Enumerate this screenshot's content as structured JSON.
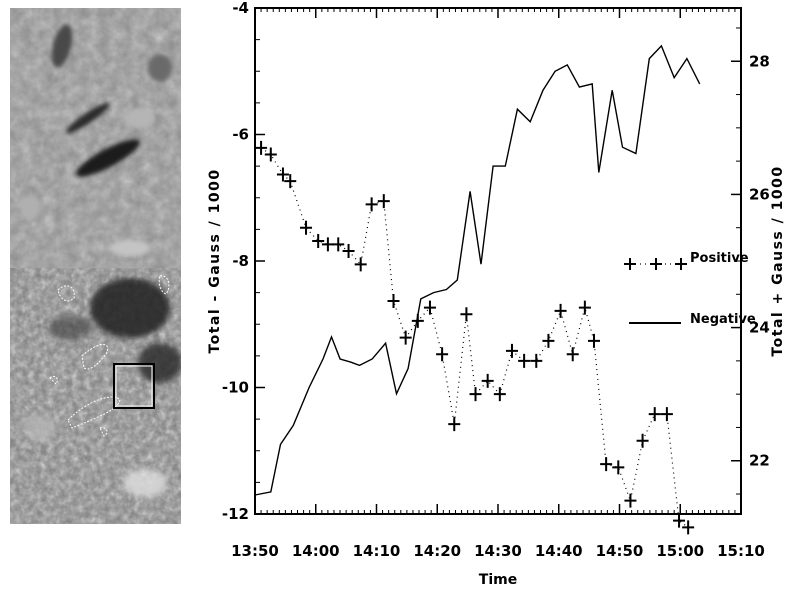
{
  "chart_data": {
    "type": "line",
    "x_axis": {
      "label": "Time",
      "ticks": [
        "13:50",
        "14:00",
        "14:10",
        "14:20",
        "14:30",
        "14:40",
        "14:50",
        "15:00",
        "15:10"
      ],
      "range_minutes_after_13_50": [
        0,
        80
      ]
    },
    "y_left": {
      "label": "Total - Gauss / 1000",
      "ticks": [
        "-4",
        "-6",
        "-8",
        "-10",
        "-12"
      ],
      "range": [
        -12,
        -4
      ]
    },
    "y_right": {
      "label": "Total + Gauss / 1000",
      "ticks": [
        "22",
        "24",
        "26",
        "28"
      ],
      "range": [
        21.2,
        28.8
      ]
    },
    "legend_position": "right",
    "series": [
      {
        "name": "Negative",
        "axis": "left",
        "style": "solid line",
        "times": [
          "13:50",
          "13:53",
          "13:55",
          "13:57",
          "14:00",
          "14:02",
          "14:04",
          "14:05",
          "14:07",
          "14:09",
          "14:10",
          "14:12",
          "14:13",
          "14:15",
          "14:17",
          "14:19",
          "14:21",
          "14:23",
          "14:25",
          "14:27",
          "14:29",
          "14:31",
          "14:33",
          "14:35",
          "14:37",
          "14:39",
          "14:41",
          "14:43",
          "14:45",
          "14:46",
          "14:48",
          "14:49",
          "14:51",
          "14:53",
          "14:55",
          "14:57",
          "14:59",
          "15:01"
        ],
        "x": [
          0,
          2.6,
          4.2,
          6.3,
          8.9,
          11.2,
          12.6,
          14.0,
          15.8,
          17.2,
          19.3,
          21.5,
          23.3,
          25.2,
          27.3,
          29.4,
          31.5,
          33.3,
          35.4,
          37.2,
          39.2,
          41.2,
          43.2,
          45.3,
          47.4,
          49.4,
          51.4,
          53.4,
          55.5,
          56.6,
          58.8,
          60.5,
          62.7,
          64.9,
          66.9,
          69.0,
          71.1,
          73.2
        ],
        "values": [
          -11.7,
          -11.65,
          -10.9,
          -10.6,
          -10.0,
          -9.55,
          -9.2,
          -9.55,
          -9.6,
          -9.65,
          -9.55,
          -9.3,
          -10.1,
          -9.7,
          -8.6,
          -8.5,
          -8.45,
          -8.3,
          -6.9,
          -8.05,
          -6.5,
          -6.5,
          -5.6,
          -5.8,
          -5.3,
          -5.0,
          -4.9,
          -5.25,
          -5.2,
          -6.6,
          -5.3,
          -6.2,
          -6.3,
          -4.8,
          -4.6,
          -5.1,
          -4.8,
          -5.2
        ]
      },
      {
        "name": "Positive",
        "axis": "right",
        "style": "dotted line with + markers",
        "times": [
          "13:51",
          "13:53",
          "13:55",
          "13:56",
          "13:59",
          "14:01",
          "14:03",
          "14:04",
          "14:06",
          "14:08",
          "14:10",
          "14:12",
          "14:13",
          "14:15",
          "14:17",
          "14:19",
          "14:21",
          "14:23",
          "14:25",
          "14:26",
          "14:28",
          "14:30",
          "14:32",
          "14:34",
          "14:36",
          "14:38",
          "14:40",
          "14:42",
          "14:44",
          "14:46",
          "14:48",
          "14:50",
          "14:52",
          "14:54",
          "14:56",
          "14:58",
          "15:00",
          "15:01"
        ],
        "x": [
          1.0,
          2.6,
          4.6,
          5.8,
          8.4,
          10.4,
          12.0,
          13.7,
          15.4,
          17.4,
          19.2,
          21.2,
          22.8,
          24.8,
          26.8,
          28.8,
          30.8,
          32.8,
          34.8,
          36.3,
          38.3,
          40.3,
          42.3,
          44.3,
          46.3,
          48.3,
          50.3,
          52.3,
          54.3,
          55.8,
          57.8,
          59.8,
          61.8,
          63.8,
          65.8,
          67.8,
          69.8,
          71.3
        ],
        "values": [
          26.7,
          26.6,
          26.3,
          26.2,
          25.5,
          25.3,
          25.25,
          25.25,
          25.15,
          24.95,
          25.85,
          25.9,
          24.4,
          23.85,
          24.1,
          24.3,
          23.6,
          22.55,
          24.2,
          23.0,
          23.2,
          23.0,
          23.65,
          23.5,
          23.5,
          23.8,
          24.25,
          23.6,
          24.3,
          23.8,
          21.95,
          21.9,
          21.4,
          22.3,
          22.7,
          22.7,
          21.1,
          21.0
        ]
      }
    ]
  },
  "legend": {
    "positive_label": "Positive",
    "negative_label": "Negative"
  },
  "colors": {
    "line": "#000000",
    "background": "#ffffff",
    "contour": "#ffffff"
  }
}
